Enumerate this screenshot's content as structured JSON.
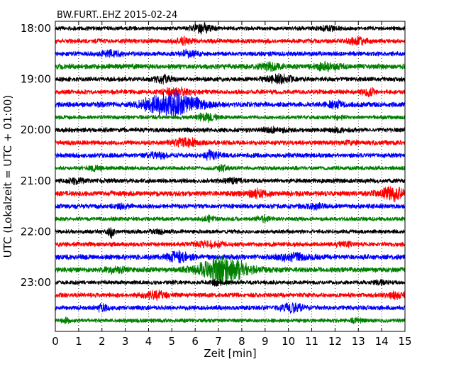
{
  "chart_data": {
    "type": "line",
    "title": "BW.FURT..EHZ 2015-02-24",
    "xlabel": "Zeit  [min]",
    "ylabel": "UTC (Lokalzeit = UTC + 01:00)",
    "xlim": [
      0,
      15
    ],
    "x_ticks": [
      "0",
      "1",
      "2",
      "3",
      "4",
      "5",
      "6",
      "7",
      "8",
      "9",
      "10",
      "11",
      "12",
      "13",
      "14",
      "15"
    ],
    "y_ticks": [
      "18:00",
      "19:00",
      "20:00",
      "21:00",
      "22:00",
      "23:00"
    ],
    "grid": "vertical dotted",
    "series": [
      {
        "start": "18:00",
        "color": "#000000",
        "amplitude": 0.35,
        "bursts": [
          [
            6.3,
            0.9,
            0.7
          ],
          [
            11.7,
            1.0,
            0.4
          ]
        ]
      },
      {
        "start": "18:15",
        "color": "#ff0000",
        "amplitude": 0.4,
        "bursts": [
          [
            5.5,
            0.7,
            0.5
          ],
          [
            13.0,
            0.7,
            0.5
          ]
        ]
      },
      {
        "start": "18:30",
        "color": "#0000ff",
        "amplitude": 0.4,
        "bursts": [
          [
            2.4,
            0.9,
            0.4
          ],
          [
            5.7,
            0.7,
            0.5
          ]
        ]
      },
      {
        "start": "18:45",
        "color": "#008000",
        "amplitude": 0.45,
        "bursts": [
          [
            9.2,
            1.0,
            0.4
          ],
          [
            11.7,
            1.0,
            0.5
          ]
        ]
      },
      {
        "start": "19:00",
        "color": "#000000",
        "amplitude": 0.4,
        "bursts": [
          [
            4.6,
            0.7,
            0.5
          ],
          [
            9.6,
            1.1,
            0.6
          ]
        ]
      },
      {
        "start": "19:15",
        "color": "#ff0000",
        "amplitude": 0.4,
        "bursts": [
          [
            5.2,
            1.3,
            0.5
          ],
          [
            13.4,
            0.6,
            0.5
          ]
        ]
      },
      {
        "start": "19:30",
        "color": "#0000ff",
        "amplitude": 0.45,
        "bursts": [
          [
            5.0,
            2.2,
            2.0
          ],
          [
            12.0,
            0.7,
            0.5
          ]
        ]
      },
      {
        "start": "19:45",
        "color": "#008000",
        "amplitude": 0.35,
        "bursts": [
          [
            6.5,
            0.9,
            0.6
          ],
          [
            12.2,
            0.5,
            0.3
          ]
        ]
      },
      {
        "start": "20:00",
        "color": "#000000",
        "amplitude": 0.4,
        "bursts": [
          [
            9.4,
            0.8,
            0.3
          ],
          [
            12.1,
            0.5,
            0.3
          ]
        ]
      },
      {
        "start": "20:15",
        "color": "#ff0000",
        "amplitude": 0.4,
        "bursts": [
          [
            5.6,
            1.2,
            0.6
          ],
          [
            12.7,
            0.5,
            0.2
          ]
        ]
      },
      {
        "start": "20:30",
        "color": "#0000ff",
        "amplitude": 0.4,
        "bursts": [
          [
            4.4,
            0.9,
            0.4
          ],
          [
            6.7,
            0.8,
            0.6
          ]
        ]
      },
      {
        "start": "20:45",
        "color": "#008000",
        "amplitude": 0.35,
        "bursts": [
          [
            7.2,
            0.4,
            0.5
          ],
          [
            1.7,
            0.7,
            0.3
          ]
        ]
      },
      {
        "start": "21:00",
        "color": "#000000",
        "amplitude": 0.4,
        "bursts": [
          [
            0.9,
            0.6,
            0.4
          ],
          [
            7.6,
            0.6,
            0.3
          ]
        ]
      },
      {
        "start": "21:15",
        "color": "#ff0000",
        "amplitude": 0.45,
        "bursts": [
          [
            8.7,
            1.1,
            0.5
          ],
          [
            14.5,
            1.1,
            1.0
          ]
        ]
      },
      {
        "start": "21:30",
        "color": "#0000ff",
        "amplitude": 0.4,
        "bursts": [
          [
            2.9,
            0.6,
            0.3
          ],
          [
            11.1,
            0.8,
            0.4
          ]
        ]
      },
      {
        "start": "21:45",
        "color": "#008000",
        "amplitude": 0.35,
        "bursts": [
          [
            6.6,
            0.5,
            0.4
          ],
          [
            8.9,
            0.6,
            0.4
          ]
        ]
      },
      {
        "start": "22:00",
        "color": "#000000",
        "amplitude": 0.35,
        "bursts": [
          [
            2.4,
            0.3,
            0.8
          ],
          [
            4.4,
            0.8,
            0.3
          ]
        ]
      },
      {
        "start": "22:15",
        "color": "#ff0000",
        "amplitude": 0.4,
        "bursts": [
          [
            6.6,
            1.0,
            0.5
          ],
          [
            12.4,
            0.8,
            0.3
          ]
        ]
      },
      {
        "start": "22:30",
        "color": "#0000ff",
        "amplitude": 0.45,
        "bursts": [
          [
            5.3,
            1.1,
            0.7
          ],
          [
            10.2,
            1.4,
            0.5
          ]
        ]
      },
      {
        "start": "22:45",
        "color": "#008000",
        "amplitude": 0.45,
        "bursts": [
          [
            7.2,
            2.0,
            2.2
          ],
          [
            2.6,
            0.9,
            0.4
          ]
        ]
      },
      {
        "start": "23:00",
        "color": "#000000",
        "amplitude": 0.35,
        "bursts": [
          [
            6.9,
            0.6,
            0.4
          ],
          [
            13.9,
            0.6,
            0.3
          ]
        ]
      },
      {
        "start": "23:15",
        "color": "#ff0000",
        "amplitude": 0.4,
        "bursts": [
          [
            4.3,
            1.0,
            0.6
          ],
          [
            14.6,
            0.8,
            0.5
          ]
        ]
      },
      {
        "start": "23:30",
        "color": "#0000ff",
        "amplitude": 0.4,
        "bursts": [
          [
            2.0,
            0.6,
            0.4
          ],
          [
            10.1,
            1.0,
            0.6
          ]
        ]
      },
      {
        "start": "23:45",
        "color": "#008000",
        "amplitude": 0.35,
        "bursts": [
          [
            0.5,
            0.4,
            0.3
          ],
          [
            12.9,
            0.5,
            0.3
          ]
        ]
      }
    ]
  }
}
